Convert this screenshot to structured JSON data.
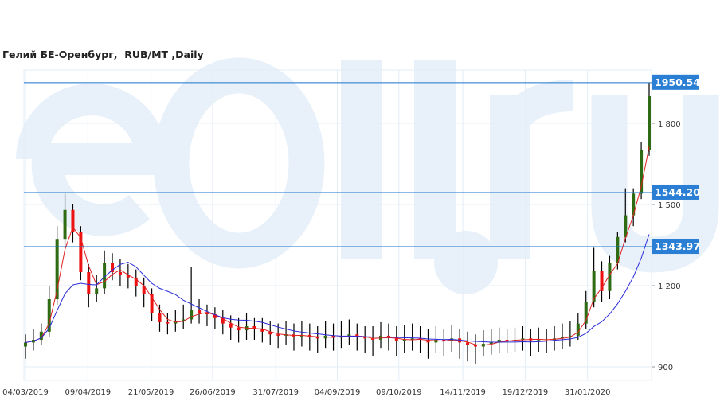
{
  "chart_data": {
    "type": "candlestick",
    "title": "Гелий БЕ-Оренбург,  RUB/MT ,Daily",
    "watermark": "eOil.ru",
    "ylim": [
      860,
      1980
    ],
    "y_ticks": [
      {
        "value": 900,
        "label": "900"
      },
      {
        "value": 1200,
        "label": "1 200"
      },
      {
        "value": 1500,
        "label": "1 500"
      },
      {
        "value": 1800,
        "label": "1 800"
      }
    ],
    "x_ticks": [
      {
        "index": 0,
        "label": "04/03/2019"
      },
      {
        "index": 7.9,
        "label": "09/04/2019"
      },
      {
        "index": 15.9,
        "label": "21/05/2019"
      },
      {
        "index": 23.7,
        "label": "26/06/2019"
      },
      {
        "index": 31.7,
        "label": "31/07/2019"
      },
      {
        "index": 39.5,
        "label": "04/09/2019"
      },
      {
        "index": 47.3,
        "label": "09/10/2019"
      },
      {
        "index": 55.4,
        "label": "14/11/2019"
      },
      {
        "index": 63.3,
        "label": "19/12/2019"
      },
      {
        "index": 71.2,
        "label": "31/01/2020"
      }
    ],
    "levels": [
      {
        "value": 1950.54,
        "label": "1950.54"
      },
      {
        "value": 1544.2,
        "label": "1544.20"
      },
      {
        "value": 1343.97,
        "label": "1343.97"
      }
    ],
    "ma": [
      {
        "name": "fast",
        "period": 3,
        "color": "#e02020"
      },
      {
        "name": "slow",
        "period": 10,
        "color": "#2a2ad8"
      }
    ],
    "colors": {
      "up": "#2e6b12",
      "down": "#ee1111",
      "wick": "#000000",
      "level": "#1a73c9",
      "label_bg": "#2a7fd4",
      "grid": "#e3edf6"
    },
    "candles_ohlc": [
      [
        975,
        1020,
        930,
        990
      ],
      [
        990,
        1040,
        960,
        1000
      ],
      [
        1000,
        1060,
        980,
        1030
      ],
      [
        1030,
        1200,
        1010,
        1150
      ],
      [
        1150,
        1420,
        1130,
        1370
      ],
      [
        1370,
        1540,
        1340,
        1480
      ],
      [
        1480,
        1500,
        1360,
        1400
      ],
      [
        1400,
        1420,
        1220,
        1250
      ],
      [
        1250,
        1280,
        1120,
        1170
      ],
      [
        1170,
        1240,
        1140,
        1190
      ],
      [
        1190,
        1330,
        1170,
        1285
      ],
      [
        1285,
        1320,
        1220,
        1250
      ],
      [
        1250,
        1300,
        1200,
        1240
      ],
      [
        1240,
        1280,
        1190,
        1230
      ],
      [
        1230,
        1260,
        1160,
        1200
      ],
      [
        1200,
        1230,
        1120,
        1170
      ],
      [
        1170,
        1190,
        1070,
        1100
      ],
      [
        1100,
        1130,
        1030,
        1065
      ],
      [
        1065,
        1100,
        1020,
        1060
      ],
      [
        1060,
        1110,
        1030,
        1070
      ],
      [
        1070,
        1130,
        1040,
        1075
      ],
      [
        1075,
        1270,
        1060,
        1110
      ],
      [
        1110,
        1150,
        1060,
        1100
      ],
      [
        1100,
        1130,
        1050,
        1094
      ],
      [
        1094,
        1120,
        1040,
        1080
      ],
      [
        1080,
        1110,
        1020,
        1060
      ],
      [
        1060,
        1090,
        1000,
        1045
      ],
      [
        1045,
        1080,
        990,
        1035
      ],
      [
        1035,
        1100,
        1000,
        1050
      ],
      [
        1050,
        1080,
        1000,
        1040
      ],
      [
        1040,
        1080,
        990,
        1030
      ],
      [
        1030,
        1070,
        980,
        1020
      ],
      [
        1020,
        1060,
        970,
        1015
      ],
      [
        1015,
        1070,
        980,
        1020
      ],
      [
        1020,
        1060,
        960,
        1012
      ],
      [
        1012,
        1070,
        975,
        1018
      ],
      [
        1018,
        1060,
        960,
        1010
      ],
      [
        1010,
        1050,
        950,
        1005
      ],
      [
        1005,
        1070,
        970,
        1015
      ],
      [
        1015,
        1060,
        960,
        1008
      ],
      [
        1008,
        1070,
        970,
        1012
      ],
      [
        1012,
        1075,
        980,
        1020
      ],
      [
        1020,
        1060,
        960,
        1010
      ],
      [
        1010,
        1050,
        950,
        1005
      ],
      [
        1005,
        1050,
        940,
        1000
      ],
      [
        1000,
        1065,
        970,
        1015
      ],
      [
        1015,
        1060,
        960,
        1008
      ],
      [
        1008,
        1050,
        940,
        995
      ],
      [
        995,
        1055,
        950,
        1000
      ],
      [
        1000,
        1060,
        960,
        1005
      ],
      [
        1005,
        1050,
        950,
        1000
      ],
      [
        1000,
        1040,
        930,
        990
      ],
      [
        990,
        1050,
        950,
        1000
      ],
      [
        1000,
        1040,
        940,
        995
      ],
      [
        995,
        1055,
        955,
        1005
      ],
      [
        1005,
        1040,
        930,
        990
      ],
      [
        990,
        1030,
        920,
        980
      ],
      [
        980,
        1020,
        910,
        975
      ],
      [
        975,
        1035,
        940,
        985
      ],
      [
        985,
        1040,
        945,
        990
      ],
      [
        990,
        1045,
        950,
        1000
      ],
      [
        1000,
        1040,
        950,
        995
      ],
      [
        995,
        1045,
        955,
        1000
      ],
      [
        1000,
        1050,
        960,
        1005
      ],
      [
        1005,
        1040,
        940,
        998
      ],
      [
        998,
        1045,
        955,
        1002
      ],
      [
        1002,
        1040,
        950,
        1000
      ],
      [
        1000,
        1050,
        960,
        1005
      ],
      [
        1005,
        1060,
        965,
        1010
      ],
      [
        1010,
        1070,
        975,
        1015
      ],
      [
        1015,
        1100,
        1000,
        1060
      ],
      [
        1060,
        1180,
        1040,
        1140
      ],
      [
        1140,
        1340,
        1120,
        1255
      ],
      [
        1255,
        1290,
        1140,
        1180
      ],
      [
        1180,
        1310,
        1150,
        1285
      ],
      [
        1285,
        1400,
        1260,
        1380
      ],
      [
        1380,
        1560,
        1360,
        1460
      ],
      [
        1460,
        1560,
        1420,
        1540
      ],
      [
        1540,
        1730,
        1520,
        1700
      ],
      [
        1700,
        1950.54,
        1680,
        1900
      ]
    ]
  }
}
